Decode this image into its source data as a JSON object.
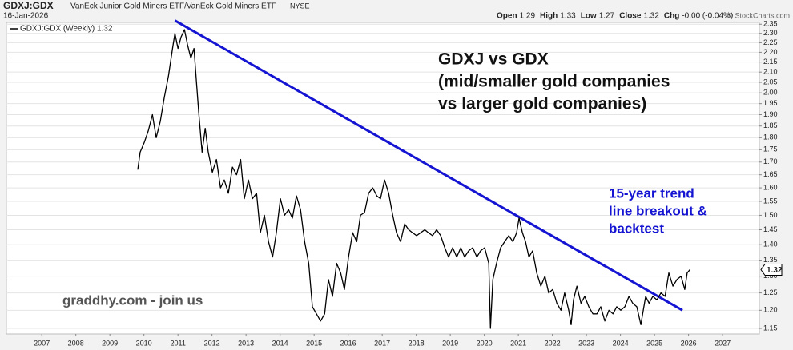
{
  "header": {
    "symbol": "GDXJ:GDX",
    "description": "VanEck Junior Gold Miners ETF/VanEck Gold Miners ETF",
    "exchange": "NYSE",
    "date": "16-Jan-2026",
    "quote": [
      {
        "label": "Open",
        "value": "1.29"
      },
      {
        "label": "High",
        "value": "1.33"
      },
      {
        "label": "Low",
        "value": "1.27"
      },
      {
        "label": "Close",
        "value": "1.32"
      },
      {
        "label": "Chg",
        "value": "-0.00 (-0.04%)"
      }
    ],
    "credit": "© StockCharts.com"
  },
  "chart_data": {
    "type": "line",
    "log_scale": true,
    "grid": true,
    "annotations": [
      "GDXJ vs GDX",
      "(mid/smaller gold companies",
      "vs larger gold companies)"
    ],
    "breakout_note": [
      "15-year trend",
      "line breakout &",
      "backtest"
    ],
    "watermark": "graddhy.com - join us",
    "last_value_tag": "1.32",
    "xlim": [
      2005.96,
      2028.08
    ],
    "xticks": [
      2007,
      2008,
      2009,
      2010,
      2011,
      2012,
      2013,
      2014,
      2015,
      2016,
      2017,
      2018,
      2019,
      2020,
      2021,
      2022,
      2023,
      2024,
      2025,
      2026,
      2027
    ],
    "ylim": [
      1.135,
      2.36
    ],
    "yticks": [
      1.15,
      {
        "value": 1.2,
        "label": "1.20"
      },
      1.25,
      {
        "value": 1.3,
        "label": "1.30"
      },
      1.35,
      {
        "value": 1.4,
        "label": "1.40"
      },
      1.45,
      {
        "value": 1.5,
        "label": "1.50"
      },
      1.55,
      {
        "value": 1.6,
        "label": "1.60"
      },
      1.65,
      {
        "value": 1.7,
        "label": "1.70"
      },
      1.75,
      {
        "value": 1.8,
        "label": "1.80"
      },
      1.85,
      {
        "value": 1.9,
        "label": "1.90"
      },
      1.95,
      {
        "value": 2.0,
        "label": "2.00"
      },
      2.05,
      {
        "value": 2.1,
        "label": "2.10"
      },
      2.15,
      {
        "value": 2.2,
        "label": "2.20"
      },
      2.25,
      {
        "value": 2.3,
        "label": "2.30"
      },
      2.35
    ],
    "x": [
      2009.82,
      2009.89,
      2010.01,
      2010.13,
      2010.25,
      2010.36,
      2010.48,
      2010.6,
      2010.72,
      2010.84,
      2010.91,
      2011.0,
      2011.09,
      2011.19,
      2011.28,
      2011.38,
      2011.47,
      2011.54,
      2011.61,
      2011.71,
      2011.8,
      2011.89,
      2012.01,
      2012.13,
      2012.25,
      2012.36,
      2012.48,
      2012.6,
      2012.72,
      2012.84,
      2012.95,
      2013.07,
      2013.19,
      2013.31,
      2013.42,
      2013.54,
      2013.66,
      2013.78,
      2013.89,
      2014.01,
      2014.13,
      2014.25,
      2014.36,
      2014.48,
      2014.6,
      2014.72,
      2014.84,
      2014.95,
      2015.07,
      2015.19,
      2015.31,
      2015.42,
      2015.54,
      2015.66,
      2015.78,
      2015.89,
      2016.01,
      2016.13,
      2016.25,
      2016.36,
      2016.48,
      2016.6,
      2016.72,
      2016.84,
      2016.95,
      2017.07,
      2017.19,
      2017.31,
      2017.42,
      2017.54,
      2017.66,
      2017.78,
      2017.89,
      2018.01,
      2018.13,
      2018.25,
      2018.36,
      2018.48,
      2018.6,
      2018.72,
      2018.84,
      2018.95,
      2019.07,
      2019.19,
      2019.31,
      2019.42,
      2019.54,
      2019.66,
      2019.78,
      2019.89,
      2020.01,
      2020.13,
      2020.18,
      2020.25,
      2020.36,
      2020.48,
      2020.6,
      2020.72,
      2020.84,
      2020.95,
      2021.02,
      2021.12,
      2021.21,
      2021.31,
      2021.42,
      2021.54,
      2021.66,
      2021.78,
      2021.89,
      2022.01,
      2022.13,
      2022.25,
      2022.36,
      2022.48,
      2022.55,
      2022.62,
      2022.72,
      2022.84,
      2022.95,
      2023.07,
      2023.19,
      2023.31,
      2023.42,
      2023.54,
      2023.66,
      2023.78,
      2023.89,
      2024.01,
      2024.13,
      2024.25,
      2024.36,
      2024.48,
      2024.6,
      2024.67,
      2024.74,
      2024.84,
      2024.95,
      2025.07,
      2025.19,
      2025.31,
      2025.42,
      2025.54,
      2025.66,
      2025.78,
      2025.89,
      2025.96,
      2026.04
    ],
    "series": [
      {
        "name": "GDXJ:GDX (Weekly) 1.32",
        "color": "#000000",
        "values": [
          1.67,
          1.74,
          1.78,
          1.83,
          1.9,
          1.8,
          1.87,
          1.98,
          2.08,
          2.22,
          2.3,
          2.22,
          2.28,
          2.32,
          2.24,
          2.17,
          2.22,
          2.06,
          1.91,
          1.74,
          1.84,
          1.74,
          1.66,
          1.71,
          1.6,
          1.63,
          1.58,
          1.68,
          1.65,
          1.71,
          1.56,
          1.63,
          1.56,
          1.58,
          1.44,
          1.5,
          1.41,
          1.36,
          1.44,
          1.56,
          1.5,
          1.52,
          1.49,
          1.57,
          1.52,
          1.41,
          1.34,
          1.21,
          1.19,
          1.17,
          1.19,
          1.29,
          1.24,
          1.34,
          1.31,
          1.26,
          1.36,
          1.44,
          1.41,
          1.5,
          1.51,
          1.58,
          1.6,
          1.57,
          1.56,
          1.63,
          1.58,
          1.5,
          1.44,
          1.41,
          1.47,
          1.45,
          1.44,
          1.43,
          1.44,
          1.45,
          1.44,
          1.43,
          1.45,
          1.43,
          1.39,
          1.36,
          1.39,
          1.36,
          1.39,
          1.36,
          1.38,
          1.39,
          1.36,
          1.38,
          1.39,
          1.34,
          1.15,
          1.29,
          1.34,
          1.39,
          1.41,
          1.43,
          1.41,
          1.44,
          1.49,
          1.44,
          1.41,
          1.36,
          1.38,
          1.31,
          1.27,
          1.3,
          1.25,
          1.26,
          1.22,
          1.2,
          1.25,
          1.2,
          1.16,
          1.23,
          1.27,
          1.22,
          1.24,
          1.21,
          1.19,
          1.19,
          1.21,
          1.17,
          1.2,
          1.19,
          1.21,
          1.2,
          1.21,
          1.24,
          1.22,
          1.21,
          1.16,
          1.2,
          1.24,
          1.22,
          1.24,
          1.23,
          1.25,
          1.24,
          1.31,
          1.27,
          1.29,
          1.3,
          1.26,
          1.31,
          1.32
        ]
      }
    ],
    "trendline": {
      "x": [
        2010.91,
        2025.82
      ],
      "values": [
        2.37,
        1.2
      ],
      "color": "#1414d2"
    }
  }
}
